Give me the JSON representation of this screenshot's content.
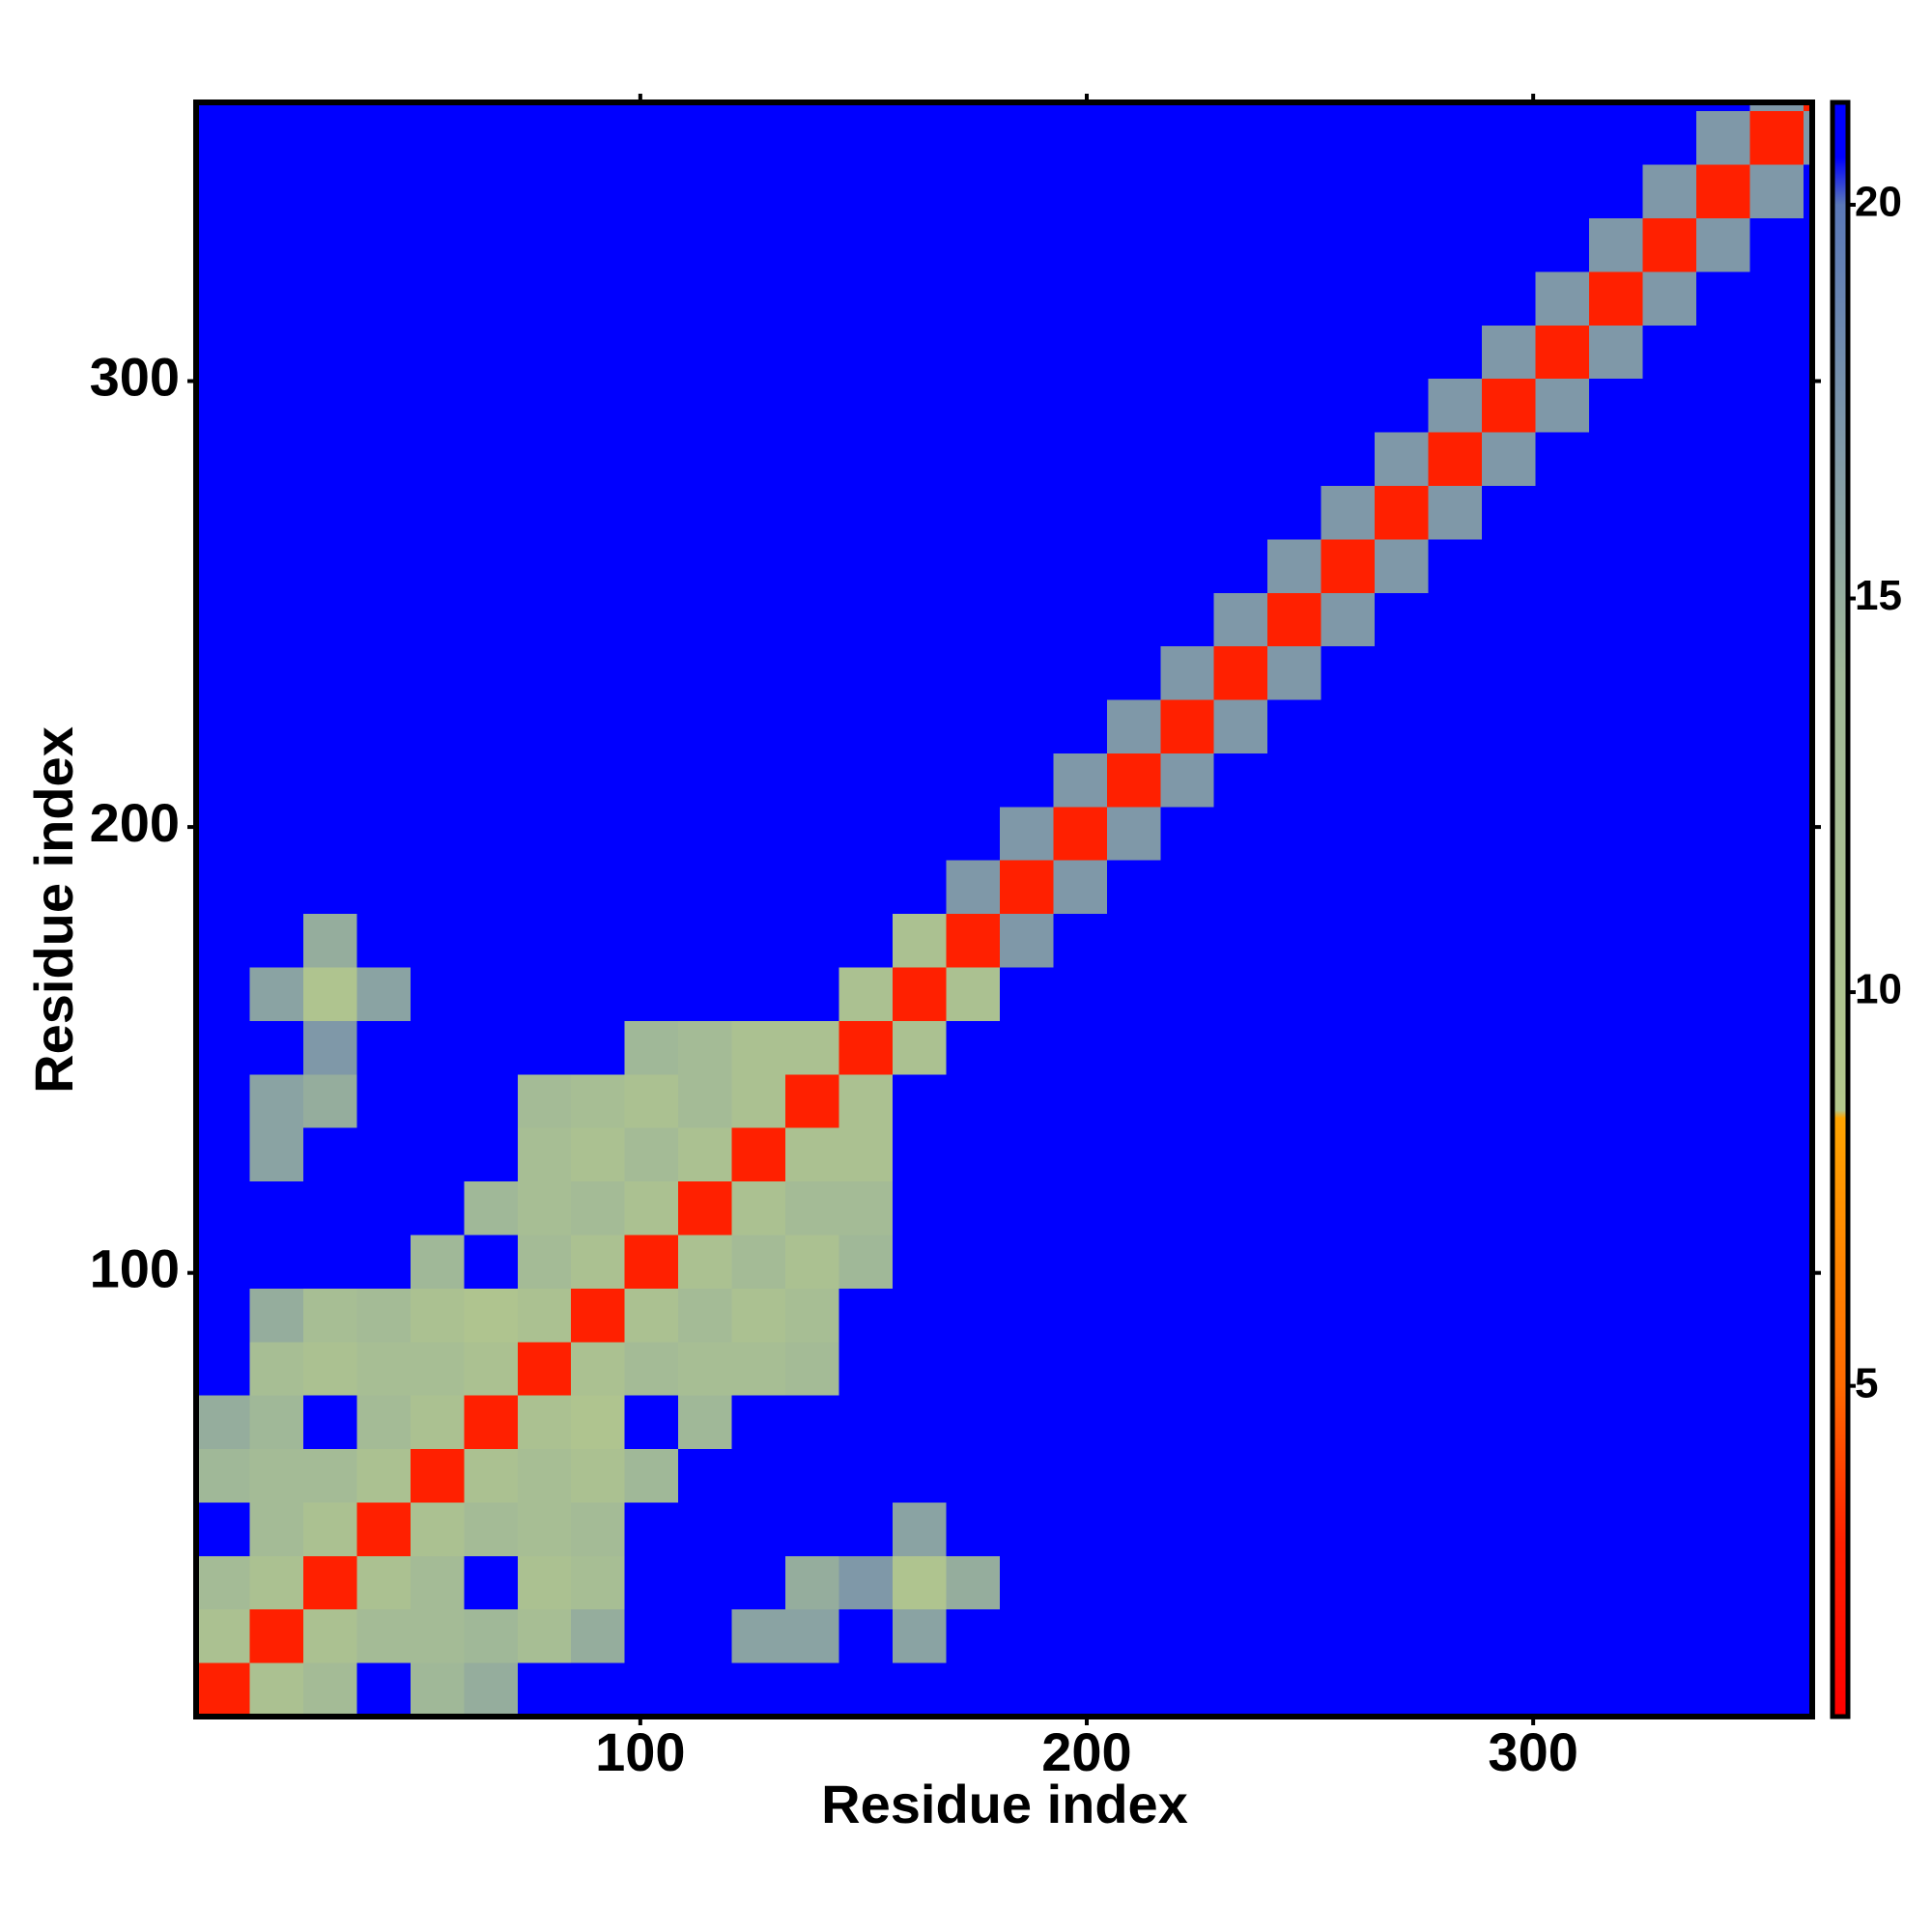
{
  "chart_data": {
    "type": "heatmap",
    "xlabel": "Residue index",
    "ylabel": "Residue index",
    "xlim": [
      0.5,
      362.5
    ],
    "ylim": [
      0.5,
      362.5
    ],
    "xticks": [
      100,
      200,
      300
    ],
    "yticks": [
      100,
      200,
      300
    ],
    "zlim": [
      0.8,
      21.3
    ],
    "zticks": [
      5,
      10,
      15,
      20
    ],
    "colorscale": [
      {
        "value": 0.8,
        "color": "#ff0000"
      },
      {
        "value": 3,
        "color": "#ff2000"
      },
      {
        "value": 5,
        "color": "#ff6a00"
      },
      {
        "value": 8.4,
        "color": "#ffa500"
      },
      {
        "value": 8.5,
        "color": "#b4c88c"
      },
      {
        "value": 14,
        "color": "#a0b898"
      },
      {
        "value": 17,
        "color": "#7f98a8"
      },
      {
        "value": 20,
        "color": "#5a78b8"
      },
      {
        "value": 20.6,
        "color": "#0000ff"
      },
      {
        "value": 21.3,
        "color": "#0000ff"
      }
    ],
    "x_edges": [
      0.5,
      12.5,
      24.5,
      36.5,
      48.5,
      60.5,
      72.5,
      84.5,
      96.5,
      108.5,
      120.5,
      132.5,
      144.5,
      156.5,
      168.5,
      180.5,
      192.5,
      204.5,
      216.5,
      228.5,
      240.5,
      252.5,
      264.5,
      276.5,
      288.5,
      300.5,
      312.5,
      324.5,
      336.5,
      348.5,
      360.5,
      362.5
    ],
    "y_edges": [
      0.5,
      12.5,
      24.5,
      36.5,
      48.5,
      60.5,
      72.5,
      84.5,
      96.5,
      108.5,
      120.5,
      132.5,
      144.5,
      156.5,
      168.5,
      180.5,
      192.5,
      204.5,
      216.5,
      228.5,
      240.5,
      252.5,
      264.5,
      276.5,
      288.5,
      300.5,
      312.5,
      324.5,
      336.5,
      348.5,
      360.5,
      362.5
    ],
    "z": [
      [
        3,
        11,
        13,
        21,
        14,
        15,
        21,
        21,
        21,
        21,
        21,
        21,
        21,
        21,
        21,
        21,
        21,
        21,
        21,
        21,
        21,
        21,
        21,
        21,
        21,
        21,
        21,
        21,
        21,
        21,
        21
      ],
      [
        11,
        3,
        11,
        13,
        13,
        14,
        12,
        15,
        21,
        21,
        16,
        16,
        21,
        16,
        21,
        21,
        21,
        21,
        21,
        21,
        21,
        21,
        21,
        21,
        21,
        21,
        21,
        21,
        21,
        21,
        21
      ],
      [
        13,
        11,
        3,
        11,
        13,
        21,
        11,
        12,
        21,
        21,
        21,
        15,
        17,
        10,
        15,
        21,
        21,
        21,
        21,
        21,
        21,
        21,
        21,
        21,
        21,
        21,
        21,
        21,
        21,
        21,
        21
      ],
      [
        21,
        13,
        11,
        3,
        11,
        13,
        12,
        13,
        21,
        21,
        21,
        21,
        21,
        16,
        21,
        21,
        21,
        21,
        21,
        21,
        21,
        21,
        21,
        21,
        21,
        21,
        21,
        21,
        21,
        21,
        21
      ],
      [
        14,
        13,
        13,
        11,
        3,
        11,
        12,
        11,
        14,
        21,
        21,
        21,
        21,
        21,
        21,
        21,
        21,
        21,
        21,
        21,
        21,
        21,
        21,
        21,
        21,
        21,
        21,
        21,
        21,
        21,
        21
      ],
      [
        15,
        14,
        21,
        13,
        11,
        3,
        11,
        10,
        21,
        14,
        21,
        21,
        21,
        21,
        21,
        21,
        21,
        21,
        21,
        21,
        21,
        21,
        21,
        21,
        21,
        21,
        21,
        21,
        21,
        21,
        21
      ],
      [
        21,
        12,
        11,
        12,
        12,
        11,
        3,
        11,
        13,
        12,
        12,
        13,
        21,
        21,
        21,
        21,
        21,
        21,
        21,
        21,
        21,
        21,
        21,
        21,
        21,
        21,
        21,
        21,
        21,
        21,
        21
      ],
      [
        21,
        15,
        12,
        13,
        11,
        10,
        11,
        3,
        11,
        13,
        11,
        12,
        21,
        21,
        21,
        21,
        21,
        21,
        21,
        21,
        21,
        21,
        21,
        21,
        21,
        21,
        21,
        21,
        21,
        21,
        21
      ],
      [
        21,
        21,
        21,
        21,
        14,
        21,
        13,
        11,
        3,
        11,
        13,
        11,
        14,
        21,
        21,
        21,
        21,
        21,
        21,
        21,
        21,
        21,
        21,
        21,
        21,
        21,
        21,
        21,
        21,
        21,
        21
      ],
      [
        21,
        21,
        21,
        21,
        21,
        14,
        12,
        13,
        11,
        3,
        11,
        13,
        13,
        21,
        21,
        21,
        21,
        21,
        21,
        21,
        21,
        21,
        21,
        21,
        21,
        21,
        21,
        21,
        21,
        21,
        21
      ],
      [
        21,
        16,
        21,
        21,
        21,
        21,
        12,
        11,
        13,
        11,
        3,
        11,
        11,
        21,
        21,
        21,
        21,
        21,
        21,
        21,
        21,
        21,
        21,
        21,
        21,
        21,
        21,
        21,
        21,
        21,
        21
      ],
      [
        21,
        16,
        15,
        21,
        21,
        21,
        13,
        12,
        11,
        13,
        11,
        3,
        11,
        21,
        21,
        21,
        21,
        21,
        21,
        21,
        21,
        21,
        21,
        21,
        21,
        21,
        21,
        21,
        21,
        21,
        21
      ],
      [
        21,
        21,
        17,
        21,
        21,
        21,
        21,
        21,
        14,
        13,
        11,
        11,
        3,
        11,
        21,
        21,
        21,
        21,
        21,
        21,
        21,
        21,
        21,
        21,
        21,
        21,
        21,
        21,
        21,
        21,
        21
      ],
      [
        21,
        16,
        10,
        16,
        21,
        21,
        21,
        21,
        21,
        21,
        21,
        21,
        11,
        3,
        11,
        21,
        21,
        21,
        21,
        21,
        21,
        21,
        21,
        21,
        21,
        21,
        21,
        21,
        21,
        21,
        21
      ],
      [
        21,
        21,
        15,
        21,
        21,
        21,
        21,
        21,
        21,
        21,
        21,
        21,
        21,
        11,
        3,
        17,
        21,
        21,
        21,
        21,
        21,
        21,
        21,
        21,
        21,
        21,
        21,
        21,
        21,
        21,
        21
      ],
      [
        21,
        21,
        21,
        21,
        21,
        21,
        21,
        21,
        21,
        21,
        21,
        21,
        21,
        21,
        17,
        3,
        17,
        21,
        21,
        21,
        21,
        21,
        21,
        21,
        21,
        21,
        21,
        21,
        21,
        21,
        21
      ],
      [
        21,
        21,
        21,
        21,
        21,
        21,
        21,
        21,
        21,
        21,
        21,
        21,
        21,
        21,
        21,
        17,
        3,
        17,
        21,
        21,
        21,
        21,
        21,
        21,
        21,
        21,
        21,
        21,
        21,
        21,
        21
      ],
      [
        21,
        21,
        21,
        21,
        21,
        21,
        21,
        21,
        21,
        21,
        21,
        21,
        21,
        21,
        21,
        21,
        17,
        3,
        17,
        21,
        21,
        21,
        21,
        21,
        21,
        21,
        21,
        21,
        21,
        21,
        21
      ],
      [
        21,
        21,
        21,
        21,
        21,
        21,
        21,
        21,
        21,
        21,
        21,
        21,
        21,
        21,
        21,
        21,
        21,
        17,
        3,
        17,
        21,
        21,
        21,
        21,
        21,
        21,
        21,
        21,
        21,
        21,
        21
      ],
      [
        21,
        21,
        21,
        21,
        21,
        21,
        21,
        21,
        21,
        21,
        21,
        21,
        21,
        21,
        21,
        21,
        21,
        21,
        17,
        3,
        17,
        21,
        21,
        21,
        21,
        21,
        21,
        21,
        21,
        21,
        21
      ],
      [
        21,
        21,
        21,
        21,
        21,
        21,
        21,
        21,
        21,
        21,
        21,
        21,
        21,
        21,
        21,
        21,
        21,
        21,
        21,
        17,
        3,
        17,
        21,
        21,
        21,
        21,
        21,
        21,
        21,
        21,
        21
      ],
      [
        21,
        21,
        21,
        21,
        21,
        21,
        21,
        21,
        21,
        21,
        21,
        21,
        21,
        21,
        21,
        21,
        21,
        21,
        21,
        21,
        17,
        3,
        17,
        21,
        21,
        21,
        21,
        21,
        21,
        21,
        21
      ],
      [
        21,
        21,
        21,
        21,
        21,
        21,
        21,
        21,
        21,
        21,
        21,
        21,
        21,
        21,
        21,
        21,
        21,
        21,
        21,
        21,
        21,
        17,
        3,
        17,
        21,
        21,
        21,
        21,
        21,
        21,
        21
      ],
      [
        21,
        21,
        21,
        21,
        21,
        21,
        21,
        21,
        21,
        21,
        21,
        21,
        21,
        21,
        21,
        21,
        21,
        21,
        21,
        21,
        21,
        21,
        17,
        3,
        17,
        21,
        21,
        21,
        21,
        21,
        21
      ],
      [
        21,
        21,
        21,
        21,
        21,
        21,
        21,
        21,
        21,
        21,
        21,
        21,
        21,
        21,
        21,
        21,
        21,
        21,
        21,
        21,
        21,
        21,
        21,
        17,
        3,
        17,
        21,
        21,
        21,
        21,
        21
      ],
      [
        21,
        21,
        21,
        21,
        21,
        21,
        21,
        21,
        21,
        21,
        21,
        21,
        21,
        21,
        21,
        21,
        21,
        21,
        21,
        21,
        21,
        21,
        21,
        21,
        17,
        3,
        17,
        21,
        21,
        21,
        21
      ],
      [
        21,
        21,
        21,
        21,
        21,
        21,
        21,
        21,
        21,
        21,
        21,
        21,
        21,
        21,
        21,
        21,
        21,
        21,
        21,
        21,
        21,
        21,
        21,
        21,
        21,
        17,
        3,
        17,
        21,
        21,
        21
      ],
      [
        21,
        21,
        21,
        21,
        21,
        21,
        21,
        21,
        21,
        21,
        21,
        21,
        21,
        21,
        21,
        21,
        21,
        21,
        21,
        21,
        21,
        21,
        21,
        21,
        21,
        21,
        17,
        3,
        17,
        21,
        21
      ],
      [
        21,
        21,
        21,
        21,
        21,
        21,
        21,
        21,
        21,
        21,
        21,
        21,
        21,
        21,
        21,
        21,
        21,
        21,
        21,
        21,
        21,
        21,
        21,
        21,
        21,
        21,
        21,
        17,
        3,
        17,
        21
      ],
      [
        21,
        21,
        21,
        21,
        21,
        21,
        21,
        21,
        21,
        21,
        21,
        21,
        21,
        21,
        21,
        21,
        21,
        21,
        21,
        21,
        21,
        21,
        21,
        21,
        21,
        21,
        21,
        21,
        17,
        3,
        17
      ],
      [
        21,
        21,
        21,
        21,
        21,
        21,
        21,
        21,
        21,
        21,
        21,
        21,
        21,
        21,
        21,
        21,
        21,
        21,
        21,
        21,
        21,
        21,
        21,
        21,
        21,
        21,
        21,
        21,
        21,
        17,
        3
      ]
    ]
  }
}
